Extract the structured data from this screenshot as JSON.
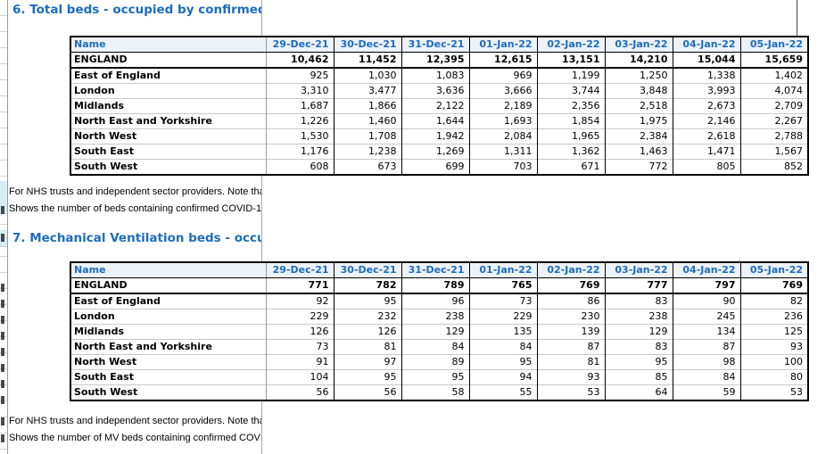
{
  "accent_color": "#1d6cbf",
  "header_bg_color": "#edf2f9",
  "strip_highlight_color": "#d8ecf4",
  "columns": [
    "Name",
    "29-Dec-21",
    "30-Dec-21",
    "31-Dec-21",
    "01-Jan-22",
    "02-Jan-22",
    "03-Jan-22",
    "04-Jan-22",
    "05-Jan-22"
  ],
  "section6": {
    "title": "6. Total beds - occupied by confirmed",
    "table": {
      "rows": [
        {
          "name": "ENGLAND",
          "total": true,
          "values": [
            "10,462",
            "11,452",
            "12,395",
            "12,615",
            "13,151",
            "14,210",
            "15,044",
            "15,659"
          ]
        },
        {
          "name": "East of England",
          "total": false,
          "values": [
            "925",
            "1,030",
            "1,083",
            "969",
            "1,199",
            "1,250",
            "1,338",
            "1,402"
          ]
        },
        {
          "name": "London",
          "total": false,
          "values": [
            "3,310",
            "3,477",
            "3,636",
            "3,666",
            "3,744",
            "3,848",
            "3,993",
            "4,074"
          ]
        },
        {
          "name": "Midlands",
          "total": false,
          "values": [
            "1,687",
            "1,866",
            "2,122",
            "2,189",
            "2,356",
            "2,518",
            "2,673",
            "2,709"
          ]
        },
        {
          "name": "North East and Yorkshire",
          "total": false,
          "values": [
            "1,226",
            "1,460",
            "1,644",
            "1,693",
            "1,854",
            "1,975",
            "2,146",
            "2,267"
          ]
        },
        {
          "name": "North West",
          "total": false,
          "values": [
            "1,530",
            "1,708",
            "1,942",
            "2,084",
            "1,965",
            "2,384",
            "2,618",
            "2,788"
          ]
        },
        {
          "name": "South East",
          "total": false,
          "values": [
            "1,176",
            "1,238",
            "1,269",
            "1,311",
            "1,362",
            "1,463",
            "1,471",
            "1,567"
          ]
        },
        {
          "name": "South West",
          "total": false,
          "values": [
            "608",
            "673",
            "699",
            "703",
            "671",
            "772",
            "805",
            "852"
          ]
        }
      ]
    },
    "footnotes": [
      "For NHS trusts and independent sector providers. Note that data",
      "Shows the number of beds containing confirmed COVID-19 pati"
    ]
  },
  "section7": {
    "title": "7. Mechanical Ventilation beds - occu",
    "table": {
      "rows": [
        {
          "name": "ENGLAND",
          "total": true,
          "values": [
            "771",
            "782",
            "789",
            "765",
            "769",
            "777",
            "797",
            "769"
          ]
        },
        {
          "name": "East of England",
          "total": false,
          "values": [
            "92",
            "95",
            "96",
            "73",
            "86",
            "83",
            "90",
            "82"
          ]
        },
        {
          "name": "London",
          "total": false,
          "values": [
            "229",
            "232",
            "238",
            "229",
            "230",
            "238",
            "245",
            "236"
          ]
        },
        {
          "name": "Midlands",
          "total": false,
          "values": [
            "126",
            "126",
            "129",
            "135",
            "139",
            "129",
            "134",
            "125"
          ]
        },
        {
          "name": "North East and Yorkshire",
          "total": false,
          "values": [
            "73",
            "81",
            "84",
            "84",
            "87",
            "83",
            "87",
            "93"
          ]
        },
        {
          "name": "North West",
          "total": false,
          "values": [
            "91",
            "97",
            "89",
            "95",
            "81",
            "95",
            "98",
            "100"
          ]
        },
        {
          "name": "South East",
          "total": false,
          "values": [
            "104",
            "95",
            "95",
            "94",
            "93",
            "85",
            "84",
            "80"
          ]
        },
        {
          "name": "South West",
          "total": false,
          "values": [
            "56",
            "56",
            "58",
            "55",
            "53",
            "64",
            "59",
            "53"
          ]
        }
      ]
    },
    "footnotes": [
      "For NHS trusts and independent sector providers. Note that data",
      "Shows the number of MV beds containing confirmed COVID-19 p"
    ]
  }
}
